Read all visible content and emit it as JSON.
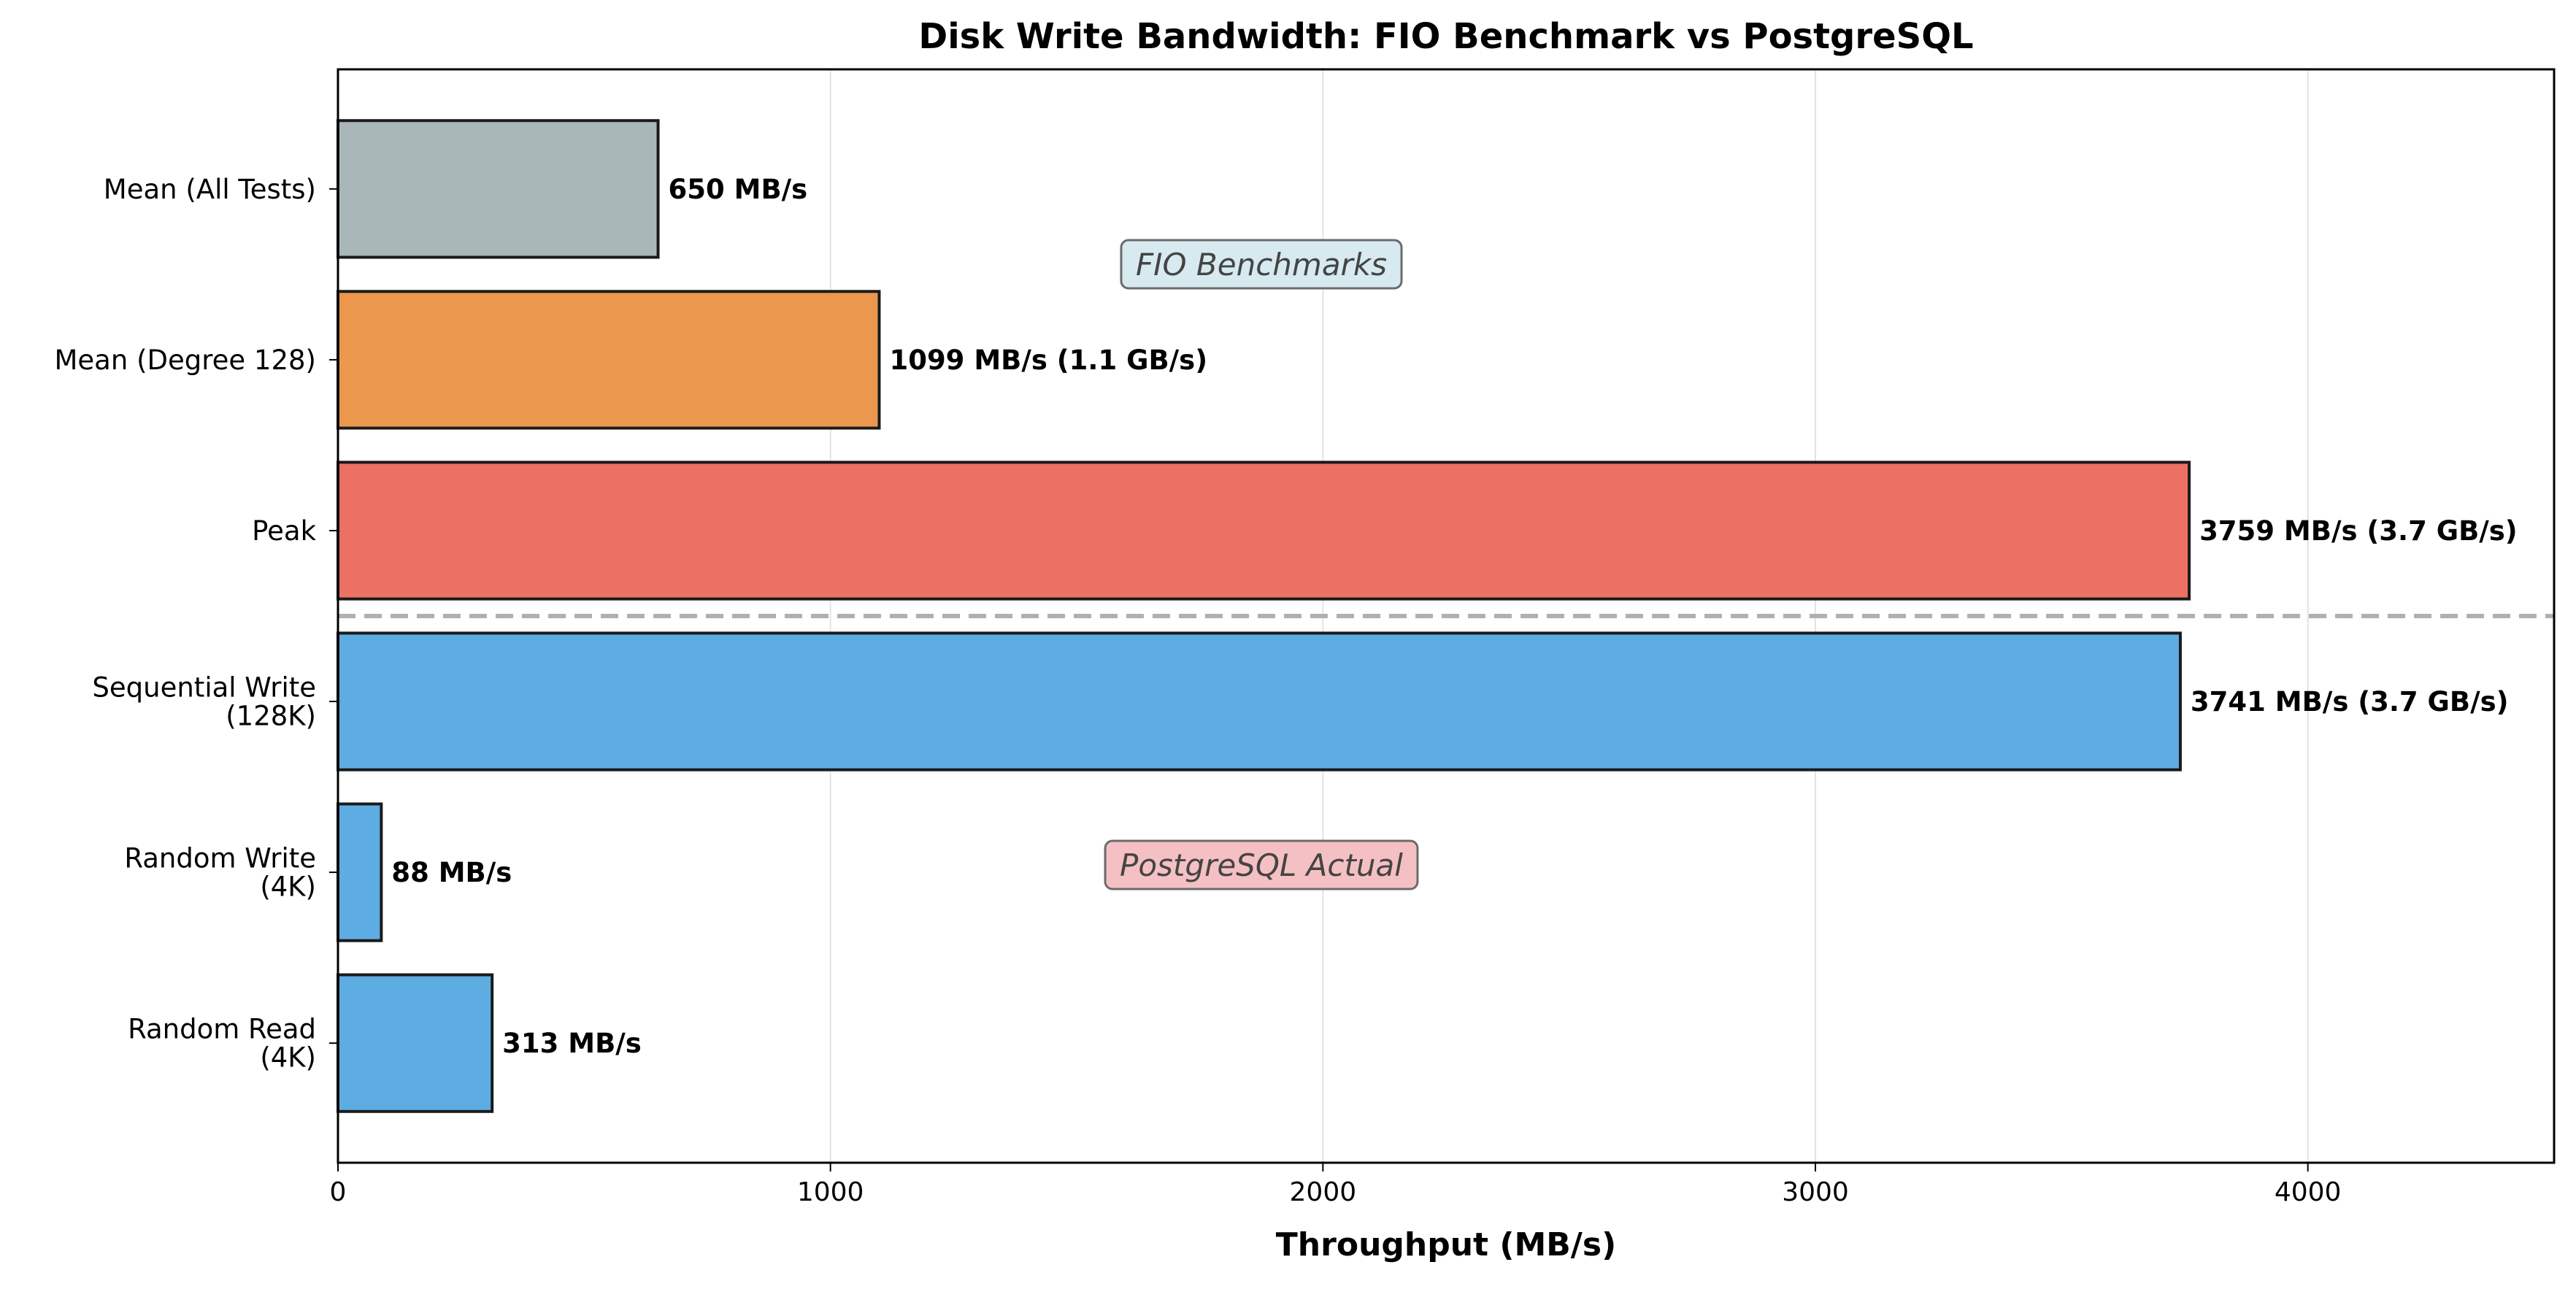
{
  "chart_data": {
    "type": "bar",
    "orientation": "horizontal",
    "title": "Disk Write Bandwidth: FIO Benchmark vs PostgreSQL",
    "xlabel": "Throughput (MB/s)",
    "ylabel": "",
    "xlim": [
      0,
      4500
    ],
    "xticks": [
      0,
      1000,
      2000,
      3000,
      4000
    ],
    "grid": "x",
    "categories": [
      "Mean (All Tests)",
      "Mean (Degree 128)",
      "Peak",
      "Sequential Write\n(128K)",
      "Random Write\n(4K)",
      "Random Read\n(4K)"
    ],
    "values": [
      650,
      1099,
      3759,
      3741,
      88,
      313
    ],
    "data_labels": [
      "650 MB/s",
      "1099 MB/s (1.1 GB/s)",
      "3759 MB/s (3.7 GB/s)",
      "3741 MB/s (3.7 GB/s)",
      "88 MB/s",
      "313 MB/s"
    ],
    "colors": [
      "#aab7b8",
      "#eb984e",
      "#ec7063",
      "#5dade2",
      "#5dade2",
      "#5dade2"
    ],
    "groups": [
      {
        "name": "FIO Benchmarks",
        "indices": [
          0,
          1,
          2
        ],
        "box_color": "#d6eaf0"
      },
      {
        "name": "PostgreSQL Actual",
        "indices": [
          3,
          4,
          5
        ],
        "box_color": "#f5c0c3"
      }
    ],
    "separator": "dashed line between Peak and Sequential Write (128K)"
  }
}
